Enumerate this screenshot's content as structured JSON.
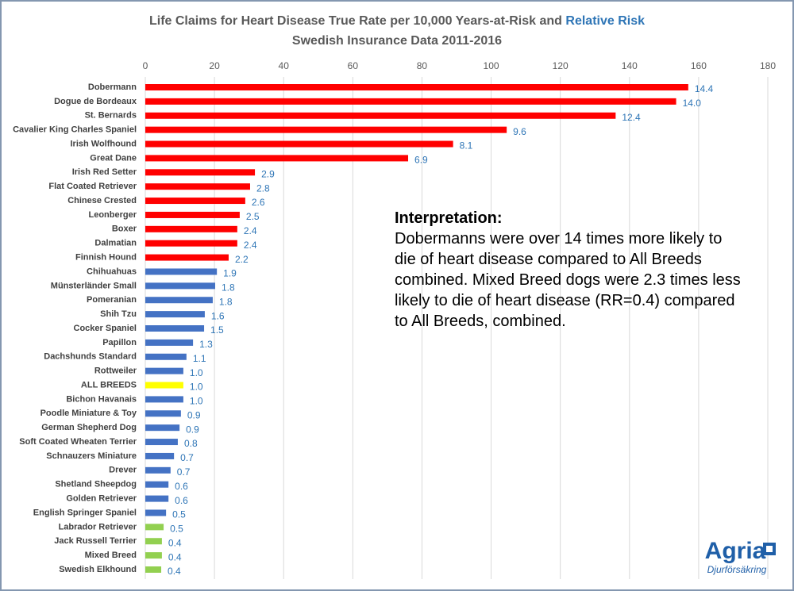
{
  "chart_data": {
    "type": "bar",
    "orientation": "horizontal",
    "title": [
      "Life Claims for Heart Disease True Rate per 10,000 Years-at-Risk and",
      "Relative Risk"
    ],
    "title_colors": [
      "#595959",
      "#2e75b6"
    ],
    "subtitle": "Swedish Insurance Data 2011-2016",
    "categories": [
      "Dobermann",
      "Dogue de Bordeaux",
      "St. Bernards",
      "Cavalier King Charles Spaniel",
      "Irish Wolfhound",
      "Great Dane",
      "Irish Red Setter",
      "Flat Coated Retriever",
      "Chinese Crested",
      "Leonberger",
      "Boxer",
      "Dalmatian",
      "Finnish Hound",
      "Chihuahuas",
      "Münsterländer Small",
      "Pomeranian",
      "Shih Tzu",
      "Cocker Spaniel",
      "Papillon",
      "Dachshunds Standard",
      "Rottweiler",
      "ALL BREEDS",
      "Bichon Havanais",
      "Poodle Miniature & Toy",
      "German Shepherd Dog",
      "Soft Coated Wheaten Terrier",
      "Schnauzers Miniature",
      "Drever",
      "Shetland Sheepdog",
      "Golden Retriever",
      "English Springer Spaniel",
      "Labrador Retriever",
      "Jack Russell Terrier",
      "Mixed Breed",
      "Swedish Elkhound"
    ],
    "values": [
      157,
      153.5,
      136,
      104.5,
      89,
      76,
      31.7,
      30.3,
      28.9,
      27.3,
      26.6,
      26.6,
      24.1,
      20.7,
      20.2,
      19.5,
      17.2,
      17,
      13.8,
      11.9,
      11,
      11,
      11,
      10.3,
      9.9,
      9.4,
      8.3,
      7.3,
      6.7,
      6.7,
      6,
      5.3,
      4.8,
      4.8,
      4.6
    ],
    "relative_risk": [
      "14.4",
      "14.0",
      "12.4",
      "9.6",
      "8.1",
      "6.9",
      "2.9",
      "2.8",
      "2.6",
      "2.5",
      "2.4",
      "2.4",
      "2.2",
      "1.9",
      "1.8",
      "1.8",
      "1.6",
      "1.5",
      "1.3",
      "1.1",
      "1.0",
      "1.0",
      "1.0",
      "0.9",
      "0.9",
      "0.8",
      "0.7",
      "0.7",
      "0.6",
      "0.6",
      "0.5",
      "0.5",
      "0.4",
      "0.4",
      "0.4"
    ],
    "colors": [
      "#ff0000",
      "#ff0000",
      "#ff0000",
      "#ff0000",
      "#ff0000",
      "#ff0000",
      "#ff0000",
      "#ff0000",
      "#ff0000",
      "#ff0000",
      "#ff0000",
      "#ff0000",
      "#ff0000",
      "#4472c4",
      "#4472c4",
      "#4472c4",
      "#4472c4",
      "#4472c4",
      "#4472c4",
      "#4472c4",
      "#4472c4",
      "#ffff00",
      "#4472c4",
      "#4472c4",
      "#4472c4",
      "#4472c4",
      "#4472c4",
      "#4472c4",
      "#4472c4",
      "#4472c4",
      "#4472c4",
      "#92d050",
      "#92d050",
      "#92d050",
      "#92d050"
    ],
    "xlim": [
      0,
      180
    ],
    "xticks": [
      0,
      20,
      40,
      60,
      80,
      100,
      120,
      140,
      160,
      180
    ],
    "grid": true,
    "annotation": {
      "heading": "Interpretation:",
      "lines": [
        "Dobermanns were over 14 times more likely to",
        "die of heart disease compared to All Breeds",
        "combined.  Mixed Breed dogs were 2.3 times less",
        "likely to die of heart disease (RR=0.4) compared",
        "to All Breeds, combined."
      ]
    },
    "logo": {
      "name": "Agria",
      "tagline": "Djurförsäkring"
    }
  }
}
